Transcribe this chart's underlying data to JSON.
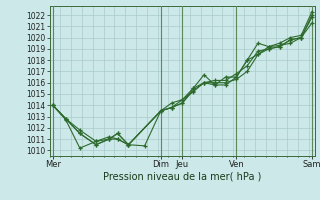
{
  "xlabel": "Pression niveau de la mer( hPa )",
  "background_color": "#cce8e8",
  "grid_color": "#aacccc",
  "line_color": "#2d6a2d",
  "marker_color": "#2d6a2d",
  "vline_color": "#5a8a5a",
  "ylim": [
    1009.5,
    1022.8
  ],
  "yticks": [
    1010,
    1011,
    1012,
    1013,
    1014,
    1015,
    1016,
    1017,
    1018,
    1019,
    1020,
    1021,
    1022
  ],
  "xlim": [
    0,
    246
  ],
  "xtick_labels": [
    "Mer",
    "Dim",
    "Jeu",
    "Ven",
    "Sam"
  ],
  "xtick_positions": [
    3,
    103,
    123,
    173,
    243
  ],
  "vline_positions": [
    3,
    103,
    123,
    173,
    243
  ],
  "lines": [
    [
      3,
      1014.0,
      15,
      1012.7,
      28,
      1010.2,
      43,
      1010.8,
      55,
      1011.0,
      63,
      1011.5,
      73,
      1010.5,
      88,
      1010.4,
      103,
      1013.5,
      113,
      1013.8,
      123,
      1014.2,
      133,
      1015.5,
      143,
      1016.0,
      153,
      1015.8,
      163,
      1016.5,
      173,
      1016.5,
      183,
      1018.0,
      193,
      1018.5,
      203,
      1019.2,
      213,
      1019.3,
      223,
      1019.5,
      233,
      1020.0,
      243,
      1022.0
    ],
    [
      3,
      1014.0,
      15,
      1012.8,
      28,
      1011.5,
      43,
      1010.5,
      55,
      1011.0,
      63,
      1011.5,
      73,
      1010.5,
      103,
      1013.5,
      113,
      1013.8,
      123,
      1014.2,
      133,
      1015.3,
      143,
      1016.0,
      153,
      1016.0,
      163,
      1016.0,
      173,
      1016.3,
      183,
      1017.0,
      193,
      1018.5,
      203,
      1019.0,
      213,
      1019.2,
      223,
      1019.8,
      233,
      1020.0,
      243,
      1021.3
    ],
    [
      3,
      1014.0,
      15,
      1012.8,
      28,
      1011.5,
      43,
      1010.5,
      55,
      1011.0,
      63,
      1011.0,
      73,
      1010.5,
      103,
      1013.5,
      113,
      1013.8,
      123,
      1014.5,
      133,
      1015.2,
      143,
      1016.0,
      153,
      1016.2,
      163,
      1016.2,
      173,
      1016.8,
      183,
      1017.5,
      193,
      1018.8,
      203,
      1019.0,
      213,
      1019.2,
      223,
      1019.8,
      233,
      1020.0,
      243,
      1021.8
    ],
    [
      3,
      1014.0,
      15,
      1012.8,
      28,
      1011.8,
      43,
      1010.8,
      55,
      1011.2,
      63,
      1011.0,
      73,
      1010.5,
      103,
      1013.5,
      113,
      1014.2,
      123,
      1014.5,
      133,
      1015.5,
      143,
      1016.7,
      153,
      1015.8,
      163,
      1015.8,
      173,
      1016.5,
      183,
      1018.0,
      193,
      1019.5,
      203,
      1019.2,
      213,
      1019.5,
      223,
      1020.0,
      233,
      1020.2,
      243,
      1022.3
    ]
  ]
}
